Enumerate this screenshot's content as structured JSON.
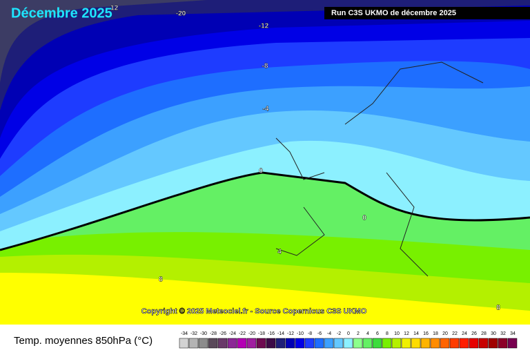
{
  "header": {
    "title": "Décembre 2025",
    "run": "Run C3S UKMO de décembre 2025"
  },
  "map": {
    "copyright": "Copyright © 2025 Meteociel.fr - Source Copernicus C3S UKMO",
    "contour_labels": [
      -12,
      -20,
      -12,
      -8,
      -4,
      0,
      0,
      4,
      8,
      8
    ]
  },
  "legend": {
    "title": "Temp. moyennes 850hPa (°C)",
    "stops": [
      {
        "value": -34,
        "color": "#d2d2d2"
      },
      {
        "value": -32,
        "color": "#b4b4b4"
      },
      {
        "value": -30,
        "color": "#8c8c8c"
      },
      {
        "value": -28,
        "color": "#5a4a5a"
      },
      {
        "value": -26,
        "color": "#6a3a6a"
      },
      {
        "value": -24,
        "color": "#8c2896"
      },
      {
        "value": -22,
        "color": "#b400b4"
      },
      {
        "value": -20,
        "color": "#a01ea0"
      },
      {
        "value": -18,
        "color": "#6e0a50"
      },
      {
        "value": -16,
        "color": "#3c0a46"
      },
      {
        "value": -14,
        "color": "#1e1e78"
      },
      {
        "value": -12,
        "color": "#0000b4"
      },
      {
        "value": -10,
        "color": "#0000e6"
      },
      {
        "value": -8,
        "color": "#1e3cff"
      },
      {
        "value": -6,
        "color": "#1e6eff"
      },
      {
        "value": -4,
        "color": "#3ca0ff"
      },
      {
        "value": -2,
        "color": "#64c8ff"
      },
      {
        "value": 0,
        "color": "#8cf0ff"
      },
      {
        "value": 2,
        "color": "#8cff8c"
      },
      {
        "value": 4,
        "color": "#64f064"
      },
      {
        "value": 6,
        "color": "#3cdc3c"
      },
      {
        "value": 8,
        "color": "#78f000"
      },
      {
        "value": 10,
        "color": "#b4f000"
      },
      {
        "value": 12,
        "color": "#f0f000"
      },
      {
        "value": 14,
        "color": "#ffdc00"
      },
      {
        "value": 16,
        "color": "#ffb400"
      },
      {
        "value": 18,
        "color": "#ff8c00"
      },
      {
        "value": 20,
        "color": "#ff6400"
      },
      {
        "value": 22,
        "color": "#ff3c00"
      },
      {
        "value": 24,
        "color": "#ff1e00"
      },
      {
        "value": 26,
        "color": "#e60000"
      },
      {
        "value": 28,
        "color": "#c80000"
      },
      {
        "value": 30,
        "color": "#a00000"
      },
      {
        "value": 32,
        "color": "#8c0028"
      },
      {
        "value": 34,
        "color": "#780050"
      }
    ]
  }
}
